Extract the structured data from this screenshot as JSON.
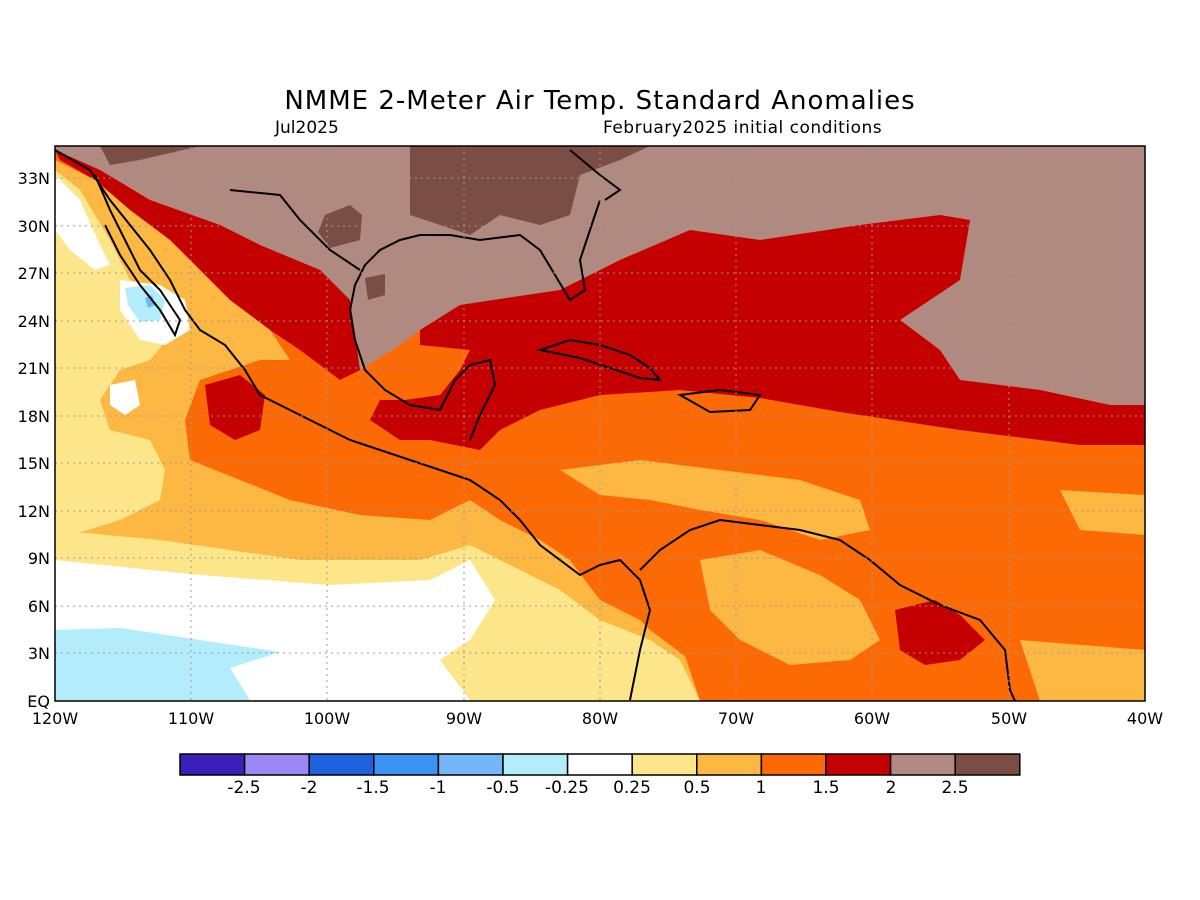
{
  "title": "NMME 2-Meter Air Temp. Standard Anomalies",
  "subtitle_left": "Jul2025",
  "subtitle_right": "February2025 initial conditions",
  "lat_labels": [
    "33N",
    "30N",
    "27N",
    "24N",
    "21N",
    "18N",
    "15N",
    "12N",
    "9N",
    "6N",
    "3N",
    "EQ"
  ],
  "lon_labels": [
    "120W",
    "110W",
    "100W",
    "90W",
    "80W",
    "70W",
    "60W",
    "50W",
    "40W"
  ],
  "colorbar": {
    "colors": [
      "#3a20b8",
      "#9b87f5",
      "#1e62e0",
      "#3b93f3",
      "#74b6f7",
      "#b3ecfa",
      "#ffffff",
      "#fde68a",
      "#fcb843",
      "#fb6a04",
      "#c40000",
      "#b08a80",
      "#7a4e44"
    ],
    "labels": [
      "-2.5",
      "-2",
      "-1.5",
      "-1",
      "-0.5",
      "-0.25",
      "0.25",
      "0.5",
      "1",
      "1.5",
      "2",
      "2.5"
    ]
  },
  "field_colors": {
    "near_zero": "#ffffff",
    "weak_warm": "#fde68a",
    "warm": "#fcb843",
    "warmer": "#fb6a04",
    "hot": "#c40000",
    "very_hot": "#b08a80",
    "extreme": "#7a4e44",
    "cool": "#b3ecfa",
    "cooler": "#74b6f7"
  }
}
